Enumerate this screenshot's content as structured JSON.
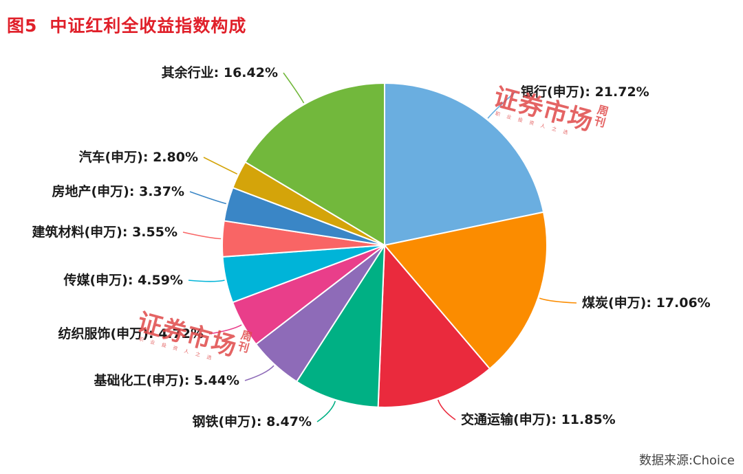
{
  "figure": {
    "fig_label": "图5",
    "title": "中证红利全收益指数构成",
    "source": "数据来源:Choice"
  },
  "watermark": {
    "main": "证券市场",
    "side": "周刊",
    "tagline": "职业投资人之选"
  },
  "chart_data": {
    "type": "pie",
    "slices": [
      {
        "label": "银行(申万): 21.72%",
        "value": 21.72,
        "color": "#6aaee0"
      },
      {
        "label": "煤炭(申万): 17.06%",
        "value": 17.06,
        "color": "#fb8c00"
      },
      {
        "label": "交通运输(申万): 11.85%",
        "value": 11.85,
        "color": "#ea2a3d"
      },
      {
        "label": "钢铁(申万): 8.47%",
        "value": 8.47,
        "color": "#00b084"
      },
      {
        "label": "基础化工(申万): 5.44%",
        "value": 5.44,
        "color": "#8e6bb8"
      },
      {
        "label": "纺织服饰(申万): 4.72%",
        "value": 4.72,
        "color": "#e93e8a"
      },
      {
        "label": "传媒(申万): 4.59%",
        "value": 4.59,
        "color": "#00b4d8"
      },
      {
        "label": "建筑材料(申万): 3.55%",
        "value": 3.55,
        "color": "#f96565"
      },
      {
        "label": "房地产(申万): 3.37%",
        "value": 3.37,
        "color": "#3a86c6"
      },
      {
        "label": "汽车(申万): 2.80%",
        "value": 2.8,
        "color": "#d4a40a"
      },
      {
        "label": "其余行业: 16.42%",
        "value": 16.42,
        "color": "#72b83c"
      }
    ]
  }
}
